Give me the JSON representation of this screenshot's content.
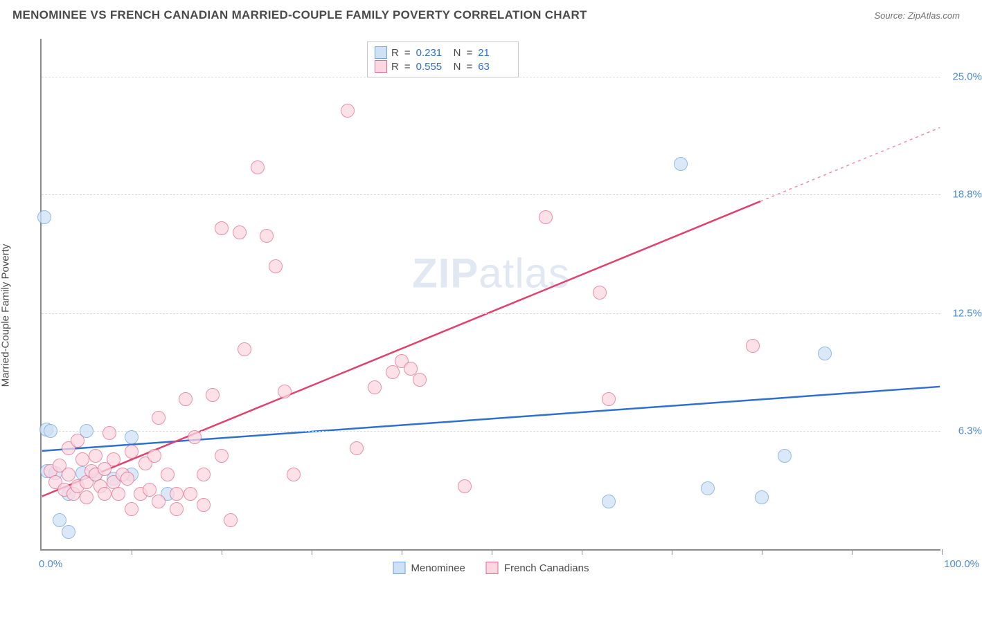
{
  "header": {
    "title": "MENOMINEE VS FRENCH CANADIAN MARRIED-COUPLE FAMILY POVERTY CORRELATION CHART",
    "source_prefix": "Source: ",
    "source_name": "ZipAtlas.com"
  },
  "watermark": {
    "part1": "ZIP",
    "part2": "atlas"
  },
  "chart": {
    "type": "scatter",
    "ylabel": "Married-Couple Family Poverty",
    "xlim": [
      0,
      100
    ],
    "ylim": [
      0,
      27
    ],
    "x_tick_labels": {
      "min": "0.0%",
      "max": "100.0%"
    },
    "x_tick_positions": [
      0,
      10,
      20,
      30,
      40,
      50,
      60,
      70,
      80,
      90,
      100
    ],
    "y_gridlines": [
      6.3,
      12.5,
      18.8,
      25.0
    ],
    "y_tick_labels": [
      "6.3%",
      "12.5%",
      "18.8%",
      "25.0%"
    ],
    "series": [
      {
        "name": "Menominee",
        "marker_radius": 10,
        "fill": "#cfe1f5",
        "stroke": "#6fa3dd",
        "fill_opacity": 0.75,
        "trend": {
          "y_at_x0": 5.2,
          "y_at_x100": 8.6,
          "color": "#2f6fd0",
          "width": 2.5
        },
        "R": "0.231",
        "N": "21",
        "points": [
          [
            0.3,
            17.6
          ],
          [
            0.5,
            6.4
          ],
          [
            0.6,
            4.2
          ],
          [
            1.0,
            6.3
          ],
          [
            1.5,
            4.1
          ],
          [
            2.0,
            1.6
          ],
          [
            3.0,
            1.0
          ],
          [
            3.0,
            3.0
          ],
          [
            4.5,
            4.1
          ],
          [
            5.0,
            6.3
          ],
          [
            6.0,
            4.0
          ],
          [
            8.0,
            3.8
          ],
          [
            10.0,
            4.0
          ],
          [
            10.0,
            6.0
          ],
          [
            14.0,
            3.0
          ],
          [
            71.0,
            20.4
          ],
          [
            82.5,
            5.0
          ],
          [
            63.0,
            2.6
          ],
          [
            74.0,
            3.3
          ],
          [
            87.0,
            10.4
          ],
          [
            80.0,
            2.8
          ]
        ]
      },
      {
        "name": "French Canadians",
        "marker_radius": 10,
        "fill": "#fbd7e1",
        "stroke": "#e36a8e",
        "fill_opacity": 0.75,
        "trend": {
          "y_at_x0": 2.8,
          "y_at_x100": 22.3,
          "color": "#e0416d",
          "width": 2.5,
          "dash_after_x": 80
        },
        "R": "0.555",
        "N": "63",
        "points": [
          [
            1,
            4.2
          ],
          [
            1.5,
            3.6
          ],
          [
            2,
            4.5
          ],
          [
            2.5,
            3.2
          ],
          [
            3,
            4.0
          ],
          [
            3,
            5.4
          ],
          [
            3.5,
            3.0
          ],
          [
            4,
            5.8
          ],
          [
            4,
            3.4
          ],
          [
            4.5,
            4.8
          ],
          [
            5,
            2.8
          ],
          [
            5,
            3.6
          ],
          [
            5.5,
            4.2
          ],
          [
            6,
            4.0
          ],
          [
            6,
            5.0
          ],
          [
            6.5,
            3.4
          ],
          [
            7,
            4.3
          ],
          [
            7,
            3.0
          ],
          [
            7.5,
            6.2
          ],
          [
            8,
            3.6
          ],
          [
            8,
            4.8
          ],
          [
            8.5,
            3.0
          ],
          [
            9,
            4.0
          ],
          [
            9.5,
            3.8
          ],
          [
            10,
            2.2
          ],
          [
            10,
            5.2
          ],
          [
            11,
            3.0
          ],
          [
            11.5,
            4.6
          ],
          [
            12,
            3.2
          ],
          [
            12.5,
            5.0
          ],
          [
            13,
            2.6
          ],
          [
            13,
            7.0
          ],
          [
            14,
            4.0
          ],
          [
            15,
            3.0
          ],
          [
            15,
            2.2
          ],
          [
            16,
            8.0
          ],
          [
            16.5,
            3.0
          ],
          [
            17,
            6.0
          ],
          [
            18,
            2.4
          ],
          [
            18,
            4.0
          ],
          [
            19,
            8.2
          ],
          [
            20,
            17.0
          ],
          [
            20,
            5.0
          ],
          [
            21,
            1.6
          ],
          [
            22,
            16.8
          ],
          [
            22.5,
            10.6
          ],
          [
            24,
            20.2
          ],
          [
            25,
            16.6
          ],
          [
            26,
            15.0
          ],
          [
            27,
            8.4
          ],
          [
            28,
            4.0
          ],
          [
            34,
            23.2
          ],
          [
            35,
            5.4
          ],
          [
            37,
            8.6
          ],
          [
            39,
            9.4
          ],
          [
            40,
            10.0
          ],
          [
            41,
            9.6
          ],
          [
            42,
            9.0
          ],
          [
            47,
            3.4
          ],
          [
            56,
            17.6
          ],
          [
            62,
            13.6
          ],
          [
            63,
            8.0
          ],
          [
            79,
            10.8
          ]
        ]
      }
    ],
    "legend_bottom": [
      {
        "label": "Menominee",
        "fill": "#cfe1f5",
        "stroke": "#6fa3dd"
      },
      {
        "label": "French Canadians",
        "fill": "#fbd7e1",
        "stroke": "#e36a8e"
      }
    ],
    "legend_top_labels": {
      "R": "R",
      "eq": "=",
      "N": "N"
    },
    "background_color": "#ffffff",
    "grid_color": "#dcdcdc",
    "axis_color": "#8a8a8a"
  }
}
